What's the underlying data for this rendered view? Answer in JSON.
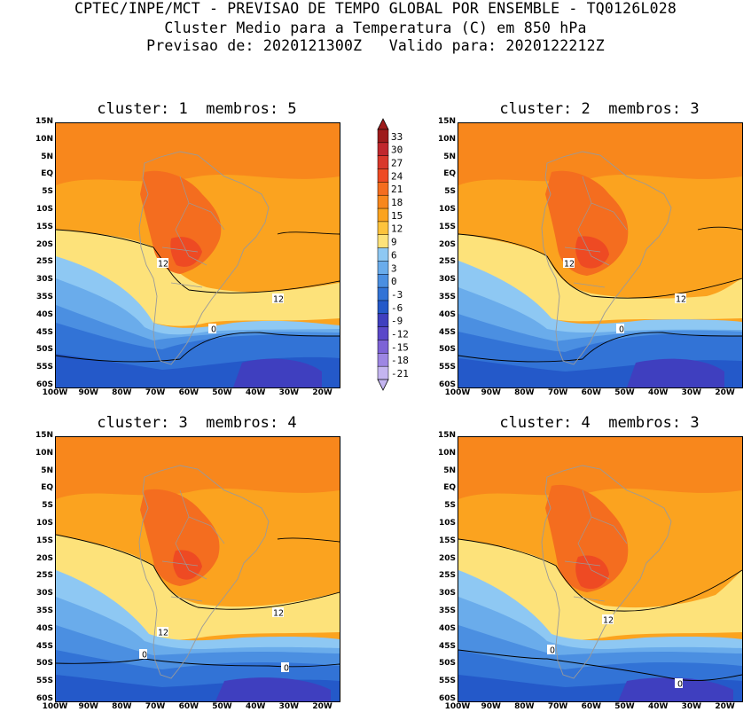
{
  "titles": {
    "line1": "CPTEC/INPE/MCT - PREVISAO DE TEMPO GLOBAL POR ENSEMBLE - TQ0126L028",
    "line2": "Cluster Medio para a Temperatura (C) em 850 hPa",
    "line3": "Previsao de: 2020121300Z   Valido para: 2020122212Z"
  },
  "panels": [
    {
      "title": "cluster: 1  membros: 5"
    },
    {
      "title": "cluster: 2  membros: 3"
    },
    {
      "title": "cluster: 3  membros: 4"
    },
    {
      "title": "cluster: 4  membros: 3"
    }
  ],
  "lat_labels": [
    "15N",
    "10N",
    "5N",
    "EQ",
    "5S",
    "10S",
    "15S",
    "20S",
    "25S",
    "30S",
    "35S",
    "40S",
    "45S",
    "50S",
    "55S",
    "60S"
  ],
  "lon_labels": [
    "100W",
    "90W",
    "80W",
    "70W",
    "60W",
    "50W",
    "40W",
    "30W",
    "20W"
  ],
  "colorbar": {
    "labels": [
      "33",
      "30",
      "27",
      "24",
      "21",
      "18",
      "15",
      "12",
      "9",
      "6",
      "3",
      "0",
      "-3",
      "-6",
      "-9",
      "-12",
      "-15",
      "-18",
      "-21"
    ],
    "colors": [
      "#9e1b1b",
      "#c0272d",
      "#d9382b",
      "#ee4a23",
      "#f46d1f",
      "#f8871c",
      "#fba31f",
      "#fdc33c",
      "#fde27a",
      "#8ec8f3",
      "#6aaceb",
      "#4b8fe1",
      "#3273d6",
      "#2459c9",
      "#3f3fbf",
      "#5a48c9",
      "#7d63d6",
      "#9d86e3",
      "#c4b5f0"
    ]
  },
  "contour_labels": {
    "p1": [
      "12",
      "12",
      "0"
    ],
    "p2": [
      "12",
      "12",
      "0"
    ],
    "p3": [
      "12",
      "12",
      "0",
      "0"
    ],
    "p4": [
      "12",
      "0",
      "0"
    ]
  },
  "colors": {
    "orange": "#fba31f",
    "orange_dark": "#f8871c",
    "red_orange": "#f46d1f",
    "red": "#ee4a23",
    "yellow": "#fde27a",
    "light_blue": "#8ec8f3",
    "blue": "#6aaceb",
    "mid_blue": "#4b8fe1",
    "deep_blue": "#3273d6",
    "navy": "#2459c9",
    "purple": "#3f3fbf"
  }
}
